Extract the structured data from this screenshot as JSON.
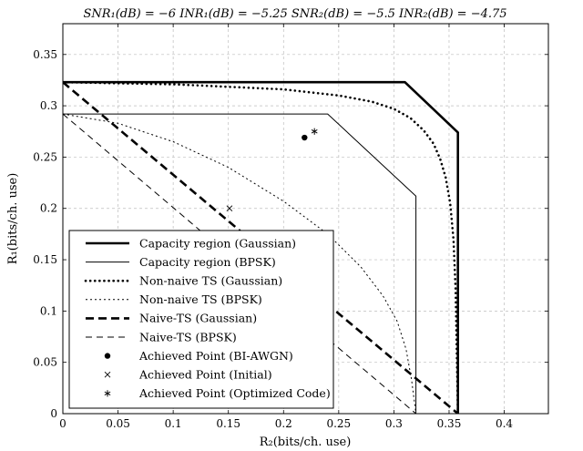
{
  "chart_data": {
    "type": "line",
    "title": "SNR₁(dB) = −6  INR₁(dB) = −5.25  SNR₂(dB) = −5.5  INR₂(dB) = −4.75",
    "xlabel": "R₂(bits/ch. use)",
    "ylabel": "R₁(bits/ch. use)",
    "xlim": [
      0,
      0.44
    ],
    "ylim": [
      0,
      0.38
    ],
    "x_ticks": [
      "0",
      "0.05",
      "0.1",
      "0.15",
      "0.2",
      "0.25",
      "0.3",
      "0.35",
      "0.4"
    ],
    "y_ticks": [
      "0",
      "0.05",
      "0.1",
      "0.15",
      "0.2",
      "0.25",
      "0.3",
      "0.35"
    ],
    "grid": true,
    "legend_position": "bottom-left",
    "series": [
      {
        "name": "Capacity region (Gaussian)",
        "style": "thick-solid",
        "points": [
          [
            0,
            0.323
          ],
          [
            0.31,
            0.323
          ],
          [
            0.358,
            0.274
          ],
          [
            0.358,
            0
          ]
        ]
      },
      {
        "name": "Capacity region (BPSK)",
        "style": "thin-solid",
        "points": [
          [
            0,
            0.292
          ],
          [
            0.24,
            0.292
          ],
          [
            0.32,
            0.212
          ],
          [
            0.32,
            0
          ]
        ]
      },
      {
        "name": "Non-naive TS (Gaussian)",
        "style": "thick-dotted",
        "points": [
          [
            0,
            0.323
          ],
          [
            0.1,
            0.321
          ],
          [
            0.2,
            0.316
          ],
          [
            0.25,
            0.31
          ],
          [
            0.28,
            0.304
          ],
          [
            0.3,
            0.297
          ],
          [
            0.315,
            0.288
          ],
          [
            0.327,
            0.276
          ],
          [
            0.336,
            0.263
          ],
          [
            0.342,
            0.248
          ],
          [
            0.347,
            0.23
          ],
          [
            0.351,
            0.205
          ],
          [
            0.354,
            0.17
          ],
          [
            0.356,
            0.12
          ],
          [
            0.357,
            0.06
          ],
          [
            0.358,
            0
          ]
        ]
      },
      {
        "name": "Non-naive TS (BPSK)",
        "style": "thin-dotted",
        "points": [
          [
            0,
            0.292
          ],
          [
            0.05,
            0.283
          ],
          [
            0.1,
            0.265
          ],
          [
            0.15,
            0.24
          ],
          [
            0.2,
            0.207
          ],
          [
            0.24,
            0.175
          ],
          [
            0.27,
            0.143
          ],
          [
            0.29,
            0.115
          ],
          [
            0.303,
            0.09
          ],
          [
            0.311,
            0.063
          ],
          [
            0.316,
            0.033
          ],
          [
            0.32,
            0
          ]
        ]
      },
      {
        "name": "Naive-TS (Gaussian)",
        "style": "thick-dashed",
        "points": [
          [
            0,
            0.323
          ],
          [
            0.358,
            0
          ]
        ]
      },
      {
        "name": "Naive-TS (BPSK)",
        "style": "thin-dashed",
        "points": [
          [
            0,
            0.292
          ],
          [
            0.32,
            0
          ]
        ]
      }
    ],
    "markers": [
      {
        "name": "Achieved Point (BI-AWGN)",
        "symbol": "dot",
        "x": 0.219,
        "y": 0.269
      },
      {
        "name": "Achieved Point (Initial)",
        "symbol": "cross",
        "x": 0.151,
        "y": 0.2
      },
      {
        "name": "Achieved Point (Optimized Code)",
        "symbol": "asterisk",
        "x": 0.228,
        "y": 0.275
      }
    ]
  }
}
